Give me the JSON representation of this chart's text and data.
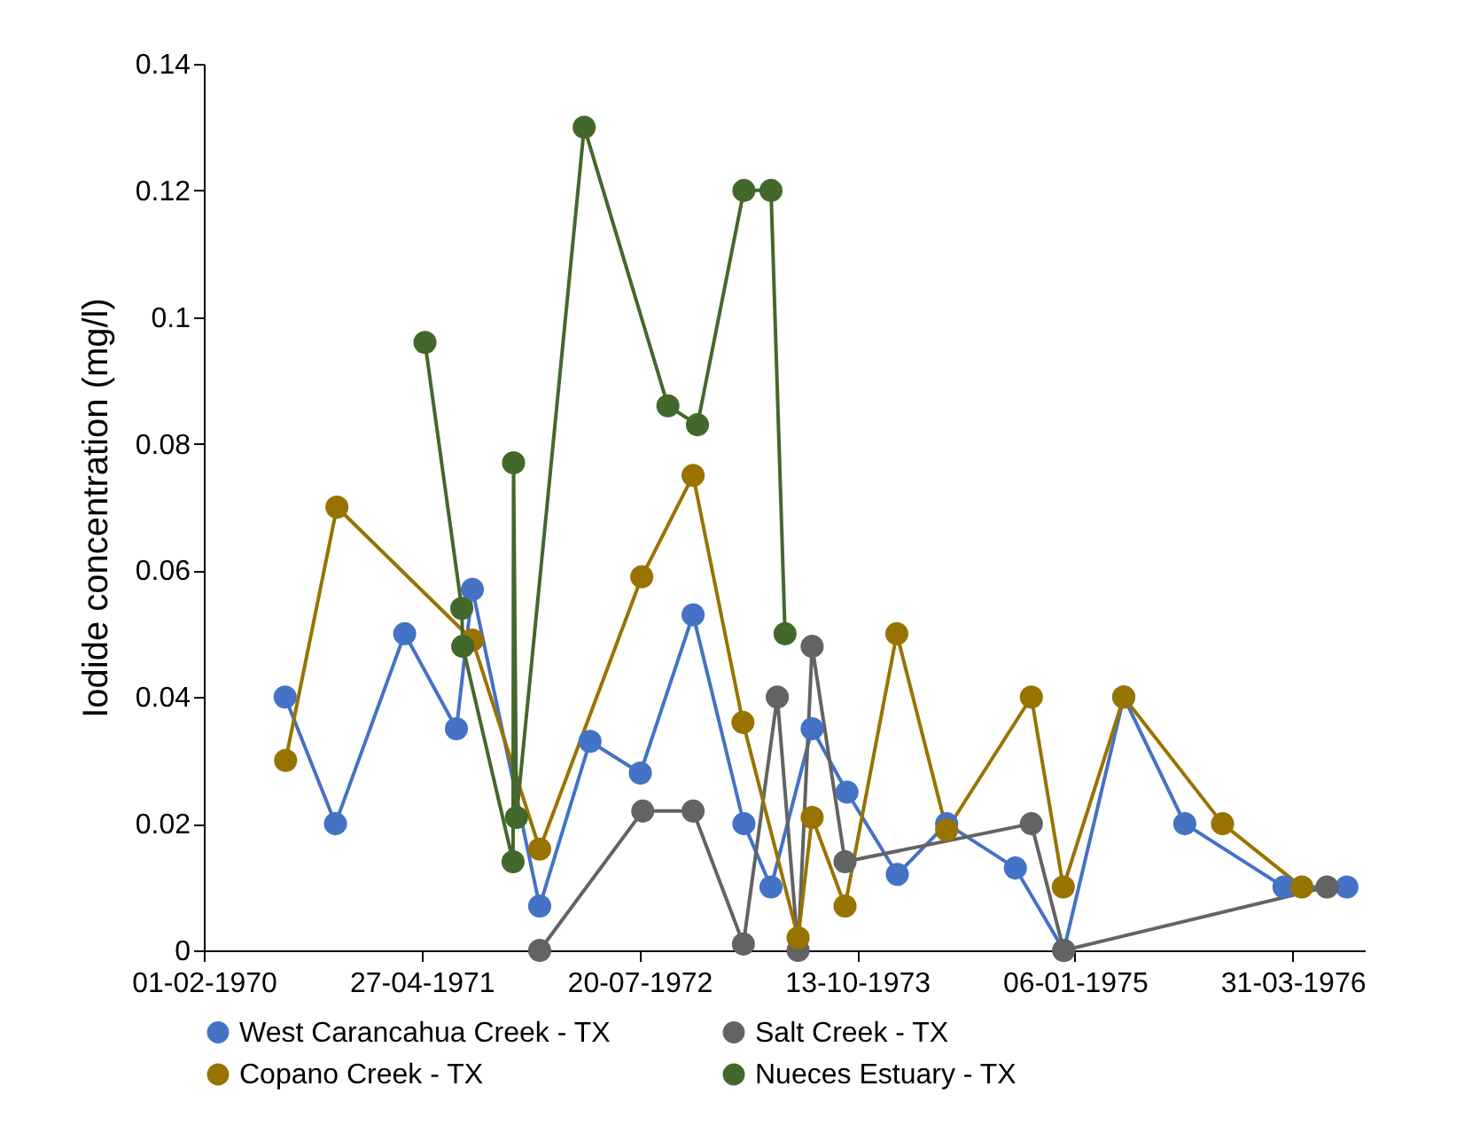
{
  "chart_data": {
    "type": "line",
    "ylabel": "Iodide concentration (mg/l)",
    "xlim": [
      "1970-02-01",
      "1976-08-27"
    ],
    "xticks": [
      {
        "value": "1970-02-01",
        "label": "01-02-1970"
      },
      {
        "value": "1971-04-27",
        "label": "27-04-1971"
      },
      {
        "value": "1972-07-20",
        "label": "20-07-1972"
      },
      {
        "value": "1973-10-13",
        "label": "13-10-1973"
      },
      {
        "value": "1975-01-06",
        "label": "06-01-1975"
      },
      {
        "value": "1976-03-31",
        "label": "31-03-1976"
      }
    ],
    "ylim": [
      0,
      0.14
    ],
    "yticks": [
      0,
      0.02,
      0.04,
      0.06,
      0.08,
      0.1,
      0.12,
      0.14
    ],
    "grid": false,
    "legend": "bottom",
    "marker": "circle",
    "line_style": "solid",
    "series": [
      {
        "name": "West Carancahua Creek - TX",
        "color": "#4472c4",
        "x": [
          "1970-07-19",
          "1970-10-31",
          "1971-03-23",
          "1971-07-08",
          "1971-08-10",
          "1971-12-27",
          "1972-04-09",
          "1972-07-22",
          "1972-11-08",
          "1973-02-21",
          "1973-04-18",
          "1973-07-12",
          "1973-09-22",
          "1974-01-04",
          "1974-04-16",
          "1974-09-05",
          "1974-12-14",
          "1975-04-17",
          "1975-08-21",
          "1976-03-13",
          "1976-07-21"
        ],
        "values": [
          0.04,
          0.02,
          0.05,
          0.035,
          0.057,
          0.007,
          0.033,
          0.028,
          0.053,
          0.02,
          0.01,
          0.035,
          0.025,
          0.012,
          0.02,
          0.013,
          0,
          0.04,
          0.02,
          0.01,
          0.01
        ]
      },
      {
        "name": "Salt Creek - TX",
        "color": "#636363",
        "x": [
          "1971-12-27",
          "1972-07-27",
          "1972-11-08",
          "1973-02-20",
          "1973-05-01",
          "1973-06-13",
          "1973-07-12",
          "1973-09-18",
          "1974-10-08",
          "1974-12-14",
          "1976-06-10"
        ],
        "values": [
          0,
          0.022,
          0.022,
          0.001,
          0.04,
          0,
          0.048,
          0.014,
          0.02,
          0,
          0.01
        ]
      },
      {
        "name": "Copano Creek - TX",
        "color": "#997300",
        "x": [
          "1970-07-20",
          "1970-11-03",
          "1971-08-10",
          "1971-12-27",
          "1972-07-25",
          "1972-11-08",
          "1973-02-19",
          "1973-06-13",
          "1973-07-12",
          "1973-09-18",
          "1974-01-03",
          "1974-04-16",
          "1974-10-08",
          "1974-12-13",
          "1975-04-17",
          "1975-11-07",
          "1976-04-19"
        ],
        "values": [
          0.03,
          0.07,
          0.049,
          0.016,
          0.059,
          0.075,
          0.036,
          0.002,
          0.021,
          0.007,
          0.05,
          0.019,
          0.04,
          0.01,
          0.04,
          0.02,
          0.01
        ]
      },
      {
        "name": "Nueces Estuary - TX",
        "color": "#43682b",
        "x": [
          "1971-05-04",
          "1971-07-19",
          "1971-07-21",
          "1971-11-02",
          "1971-11-03",
          "1971-11-09",
          "1972-03-28",
          "1972-09-17",
          "1972-11-17",
          "1973-02-21",
          "1973-04-18",
          "1973-05-17"
        ],
        "values": [
          0.096,
          0.054,
          0.048,
          0.014,
          0.077,
          0.021,
          0.13,
          0.086,
          0.083,
          0.12,
          0.12,
          0.05
        ]
      }
    ]
  }
}
